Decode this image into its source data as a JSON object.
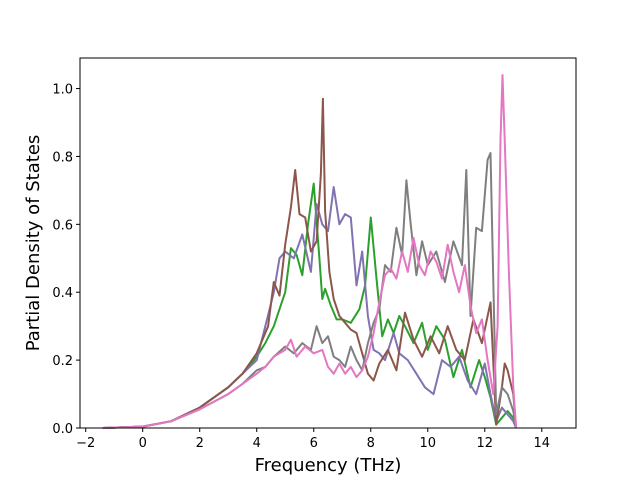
{
  "chart_data": {
    "type": "line",
    "title": "",
    "xlabel": "Frequency (THz)",
    "ylabel": "Partial Density of States",
    "xlim": [
      -2.2,
      15.2
    ],
    "ylim": [
      0,
      1.09
    ],
    "xticks": [
      -2,
      0,
      2,
      4,
      6,
      8,
      10,
      12,
      14
    ],
    "xtick_labels": [
      "−2",
      "0",
      "2",
      "4",
      "6",
      "8",
      "10",
      "12",
      "14"
    ],
    "yticks": [
      0,
      0.2,
      0.4,
      0.6,
      0.8,
      1.0
    ],
    "ytick_labels": [
      "0.0",
      "0.2",
      "0.4",
      "0.6",
      "0.8",
      "1.0"
    ],
    "grid": false,
    "legend": "none",
    "colors": [
      "#2ca02c",
      "#8172b2",
      "#8c564b",
      "#7f7f7f",
      "#e377c2"
    ],
    "series": [
      {
        "color": "#2ca02c",
        "x": [
          -1.4,
          0,
          1,
          2,
          3,
          3.5,
          4,
          4.3,
          4.6,
          5,
          5.2,
          5.4,
          5.6,
          5.8,
          6.0,
          6.2,
          6.3,
          6.4,
          6.6,
          6.8,
          7.0,
          7.3,
          7.6,
          7.8,
          8.0,
          8.2,
          8.4,
          8.6,
          8.8,
          9.0,
          9.2,
          9.5,
          9.8,
          10.0,
          10.3,
          10.6,
          10.9,
          11.2,
          11.5,
          11.8,
          12.0,
          12.2,
          12.4,
          12.6,
          12.8,
          13.0,
          13.1
        ],
        "y": [
          0,
          0.004,
          0.02,
          0.06,
          0.12,
          0.16,
          0.21,
          0.25,
          0.3,
          0.4,
          0.53,
          0.51,
          0.45,
          0.6,
          0.72,
          0.5,
          0.38,
          0.41,
          0.36,
          0.32,
          0.32,
          0.31,
          0.35,
          0.42,
          0.62,
          0.44,
          0.27,
          0.32,
          0.28,
          0.33,
          0.3,
          0.25,
          0.31,
          0.23,
          0.3,
          0.26,
          0.15,
          0.23,
          0.12,
          0.2,
          0.15,
          0.09,
          0.01,
          0.03,
          0.05,
          0.03,
          0
        ]
      },
      {
        "color": "#8172b2",
        "x": [
          -1.4,
          0,
          1,
          2,
          3,
          3.5,
          4,
          4.3,
          4.6,
          4.8,
          5.0,
          5.3,
          5.6,
          5.9,
          6.1,
          6.3,
          6.5,
          6.7,
          6.9,
          7.1,
          7.3,
          7.5,
          7.7,
          7.9,
          8.1,
          8.3,
          8.5,
          8.8,
          9.0,
          9.3,
          9.6,
          9.9,
          10.2,
          10.5,
          10.8,
          11.1,
          11.4,
          11.7,
          12.0,
          12.2,
          12.4,
          12.6,
          12.8,
          13.0,
          13.1
        ],
        "y": [
          0,
          0.004,
          0.02,
          0.06,
          0.12,
          0.16,
          0.2,
          0.3,
          0.4,
          0.5,
          0.52,
          0.5,
          0.57,
          0.46,
          0.66,
          0.6,
          0.58,
          0.71,
          0.6,
          0.63,
          0.62,
          0.42,
          0.52,
          0.33,
          0.23,
          0.22,
          0.2,
          0.28,
          0.22,
          0.2,
          0.16,
          0.12,
          0.1,
          0.2,
          0.18,
          0.21,
          0.14,
          0.1,
          0.19,
          0.1,
          0.02,
          0.06,
          0.04,
          0.02,
          0
        ]
      },
      {
        "color": "#8c564b",
        "x": [
          -1.4,
          0,
          1,
          2,
          3,
          3.5,
          4,
          4.2,
          4.4,
          4.6,
          4.8,
          5.0,
          5.2,
          5.35,
          5.5,
          5.7,
          5.9,
          6.1,
          6.25,
          6.32,
          6.4,
          6.55,
          6.7,
          6.9,
          7.1,
          7.3,
          7.5,
          7.7,
          7.9,
          8.1,
          8.3,
          8.6,
          8.9,
          9.2,
          9.5,
          9.8,
          10.1,
          10.4,
          10.7,
          11.0,
          11.3,
          11.6,
          11.9,
          12.2,
          12.4,
          12.6,
          12.7,
          12.8,
          13.0,
          13.1
        ],
        "y": [
          0,
          0.004,
          0.02,
          0.06,
          0.12,
          0.16,
          0.22,
          0.26,
          0.3,
          0.43,
          0.39,
          0.54,
          0.65,
          0.76,
          0.63,
          0.62,
          0.52,
          0.55,
          0.75,
          0.97,
          0.64,
          0.46,
          0.38,
          0.33,
          0.31,
          0.29,
          0.28,
          0.22,
          0.16,
          0.14,
          0.19,
          0.23,
          0.17,
          0.34,
          0.26,
          0.21,
          0.27,
          0.22,
          0.3,
          0.23,
          0.2,
          0.32,
          0.25,
          0.37,
          0.01,
          0.12,
          0.19,
          0.17,
          0.1,
          0
        ]
      },
      {
        "color": "#7f7f7f",
        "x": [
          -1.4,
          0,
          1,
          2,
          3,
          3.5,
          4,
          4.3,
          4.6,
          5.0,
          5.3,
          5.6,
          5.9,
          6.1,
          6.3,
          6.5,
          6.7,
          6.9,
          7.1,
          7.3,
          7.5,
          7.7,
          7.9,
          8.1,
          8.3,
          8.5,
          8.7,
          8.9,
          9.1,
          9.25,
          9.4,
          9.6,
          9.8,
          10.0,
          10.3,
          10.6,
          10.9,
          11.2,
          11.35,
          11.5,
          11.7,
          11.9,
          12.1,
          12.2,
          12.4,
          12.6,
          12.8,
          13.0,
          13.1
        ],
        "y": [
          0,
          0.004,
          0.02,
          0.055,
          0.1,
          0.13,
          0.17,
          0.18,
          0.21,
          0.24,
          0.22,
          0.25,
          0.23,
          0.3,
          0.25,
          0.27,
          0.21,
          0.2,
          0.18,
          0.24,
          0.2,
          0.17,
          0.25,
          0.31,
          0.35,
          0.48,
          0.46,
          0.59,
          0.51,
          0.73,
          0.6,
          0.45,
          0.55,
          0.48,
          0.52,
          0.43,
          0.55,
          0.48,
          0.76,
          0.33,
          0.59,
          0.58,
          0.79,
          0.81,
          0.04,
          0.12,
          0.1,
          0.05,
          0
        ]
      },
      {
        "color": "#e377c2",
        "x": [
          -1.4,
          0,
          1,
          2,
          3,
          3.5,
          4,
          4.3,
          4.6,
          5.0,
          5.2,
          5.4,
          5.7,
          6.0,
          6.3,
          6.5,
          6.7,
          6.9,
          7.1,
          7.3,
          7.5,
          7.7,
          7.9,
          8.1,
          8.3,
          8.5,
          8.7,
          8.9,
          9.1,
          9.3,
          9.5,
          9.7,
          9.9,
          10.1,
          10.3,
          10.5,
          10.7,
          10.9,
          11.1,
          11.3,
          11.5,
          11.7,
          11.9,
          12.1,
          12.3,
          12.45,
          12.55,
          12.62,
          12.7,
          12.85,
          13.0,
          13.1
        ],
        "y": [
          0,
          0.004,
          0.02,
          0.055,
          0.1,
          0.13,
          0.16,
          0.18,
          0.21,
          0.23,
          0.26,
          0.21,
          0.24,
          0.22,
          0.23,
          0.18,
          0.16,
          0.19,
          0.16,
          0.18,
          0.15,
          0.17,
          0.21,
          0.28,
          0.37,
          0.45,
          0.47,
          0.44,
          0.52,
          0.46,
          0.56,
          0.48,
          0.45,
          0.52,
          0.49,
          0.44,
          0.54,
          0.46,
          0.4,
          0.48,
          0.36,
          0.28,
          0.32,
          0.2,
          0.1,
          0.3,
          0.85,
          1.04,
          0.85,
          0.45,
          0.12,
          0
        ]
      }
    ]
  }
}
